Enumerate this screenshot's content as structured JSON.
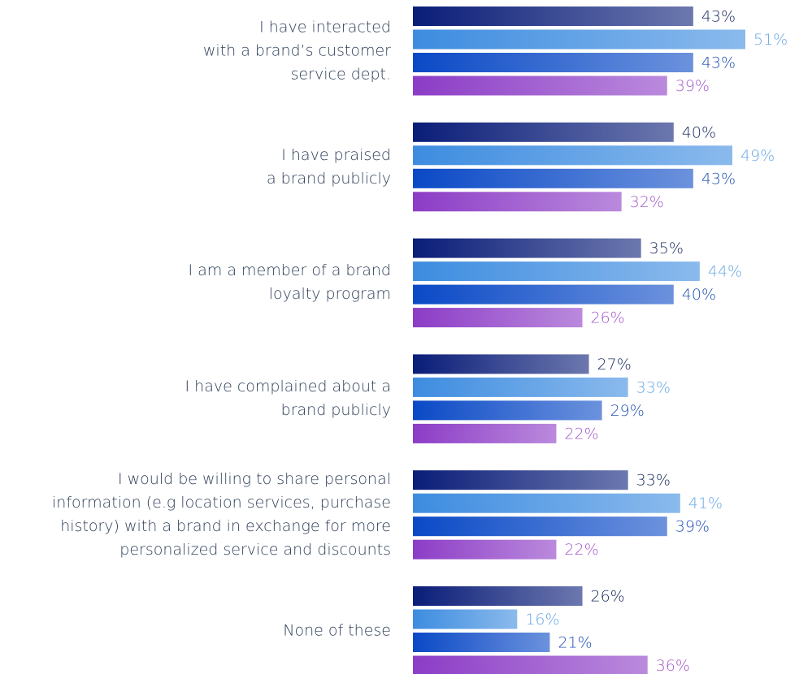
{
  "chart_data": {
    "type": "bar",
    "orientation": "horizontal",
    "categories": [
      "I have interacted\nwith a brand’s customer\nservice dept.",
      "I have praised\na brand publicly",
      "I am a member of a brand\nloyalty program",
      "I have complained about a\nbrand publicly",
      "I would be willing to share personal\ninformation (e.g location services, purchase\nhistory) with a brand in exchange for more\npersonalized service and discounts",
      "None of these"
    ],
    "series": [
      {
        "color": "#0a1d78",
        "label_color": "#1c2d5e",
        "values": [
          43,
          40,
          35,
          27,
          33,
          26
        ],
        "value_labels": [
          "43%",
          "40%",
          "35%",
          "27%",
          "33%",
          "26%"
        ]
      },
      {
        "color": "#3d8ce0",
        "label_color": "#6aa8e6",
        "values": [
          51,
          49,
          44,
          33,
          41,
          16
        ],
        "value_labels": [
          "51%",
          "49%",
          "44%",
          "33%",
          "41%",
          "16%"
        ]
      },
      {
        "color": "#0a49c6",
        "label_color": "#2452b4",
        "values": [
          43,
          43,
          40,
          29,
          39,
          21
        ],
        "value_labels": [
          "43%",
          "43%",
          "40%",
          "29%",
          "39%",
          "21%"
        ]
      },
      {
        "color": "#8c3cc6",
        "label_color": "#a45ccb",
        "values": [
          39,
          32,
          26,
          22,
          22,
          36
        ],
        "value_labels": [
          "39%",
          "32%",
          "26%",
          "22%",
          "22%",
          "36%"
        ]
      }
    ]
  }
}
